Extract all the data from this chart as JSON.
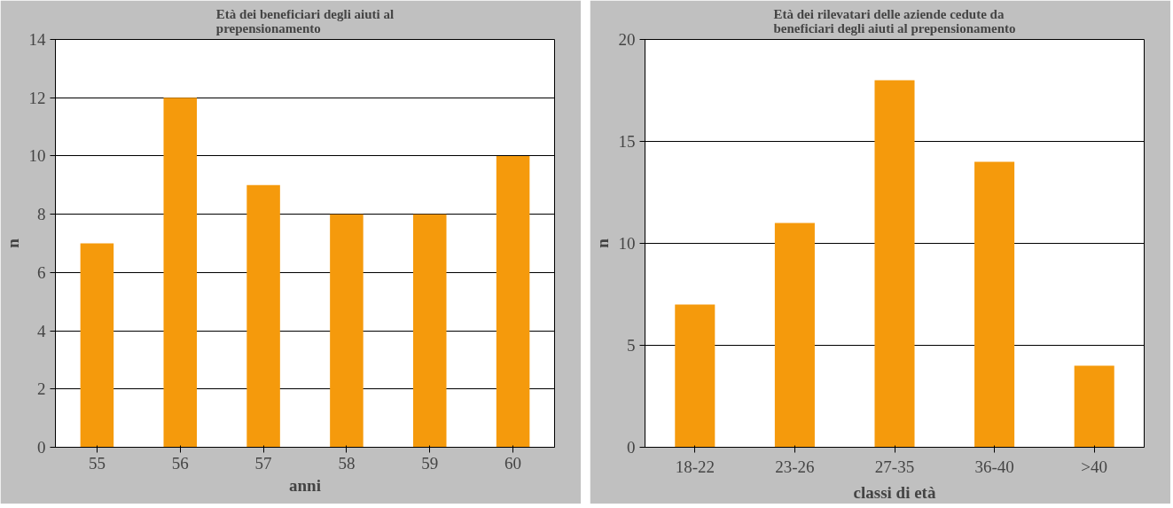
{
  "chart_data": [
    {
      "type": "bar",
      "title": "Età dei beneficiari degli aiuti al prepensionamento",
      "xlabel": "anni",
      "ylabel": "n",
      "categories": [
        "55",
        "56",
        "57",
        "58",
        "59",
        "60"
      ],
      "values": [
        7,
        12,
        9,
        8,
        8,
        10
      ],
      "color": "#f59a0c",
      "ylim": [
        0,
        14
      ],
      "yticks": [
        0,
        2,
        4,
        6,
        8,
        10,
        12,
        14
      ],
      "grid": "y"
    },
    {
      "type": "bar",
      "title": "Età dei rilevatari delle aziende cedute da beneficiari degli aiuti al prepensionamento",
      "xlabel": "classi di età",
      "ylabel": "n",
      "categories": [
        "18-22",
        "23-26",
        "27-35",
        "36-40",
        ">40"
      ],
      "values": [
        7,
        11,
        18,
        14,
        4
      ],
      "color": "#f59a0c",
      "ylim": [
        0,
        20
      ],
      "yticks": [
        0,
        5,
        10,
        15,
        20
      ],
      "grid": "y"
    }
  ]
}
